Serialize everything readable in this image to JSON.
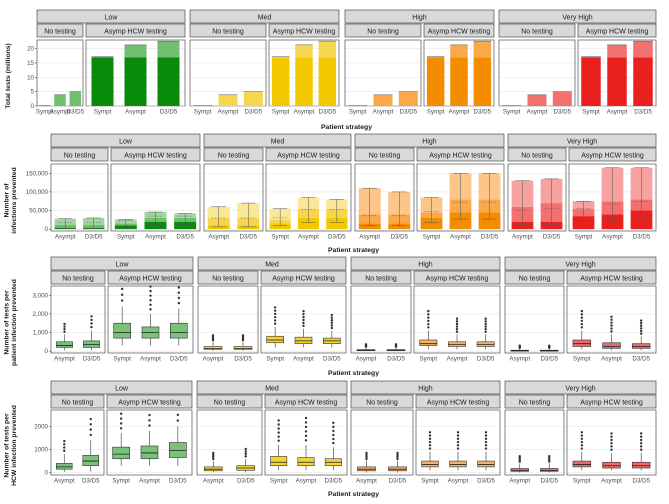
{
  "chart_data": [
    {
      "type": "bar",
      "title": "",
      "ylabel": "Total tests (millions)",
      "xlabel": "Patient strategy",
      "ylim": [
        0,
        23
      ],
      "yticks": [
        0,
        5,
        10,
        15,
        20
      ],
      "ytick_labels": [
        "0",
        "5",
        "10",
        "15",
        "20"
      ],
      "groups": [
        {
          "label": "Low",
          "colors": {
            "light": "#a3d4a3",
            "mid": "#6fbf6f",
            "dark": "#0a8a0a"
          }
        },
        {
          "label": "Med",
          "colors": {
            "light": "#fbe79a",
            "mid": "#f7d64f",
            "dark": "#f2c900"
          }
        },
        {
          "label": "High",
          "colors": {
            "light": "#fcc68b",
            "mid": "#f9a84a",
            "dark": "#f48c00"
          }
        },
        {
          "label": "Very High",
          "colors": {
            "light": "#f7a1a1",
            "mid": "#f2706f",
            "dark": "#e8201e"
          }
        }
      ],
      "subpanels": [
        {
          "label": "No testing",
          "categories": [
            "Sympt",
            "Asympt",
            "D3/D5"
          ],
          "bars": [
            [
              0,
              0.15
            ],
            [
              0,
              3.9
            ],
            [
              0,
              5.0
            ]
          ]
        },
        {
          "label": "Asymp HCW testing",
          "categories": [
            "Sympt",
            "Asympt",
            "D3/D5"
          ],
          "bars": [
            [
              17.0,
              17.2
            ],
            [
              17.0,
              21.3
            ],
            [
              17.0,
              22.6
            ]
          ]
        }
      ]
    },
    {
      "type": "bar",
      "title": "",
      "ylabel": "Number of infections prevented",
      "xlabel": "Patient strategy",
      "ylim": [
        -5000,
        175000
      ],
      "yticks": [
        0,
        50000,
        100000,
        150000
      ],
      "ytick_labels": [
        "0",
        "50,000",
        "100,000",
        "150,000"
      ],
      "groups": [
        {
          "label": "Low"
        },
        {
          "label": "Med"
        },
        {
          "label": "High"
        },
        {
          "label": "Very High"
        }
      ],
      "subpanels": [
        {
          "label": "No testing",
          "categories": [
            "Asympt",
            "D3/D5"
          ]
        },
        {
          "label": "Asymp HCW testing",
          "categories": [
            "Sympt",
            "Asympt",
            "D3/D5"
          ]
        }
      ],
      "values": {
        "Low": [
          [
            [
              4000,
              12000,
              28000
            ],
            [
              4000,
              12000,
              30000
            ]
          ],
          [
            [
              10000,
              15000,
              26000
            ],
            [
              20000,
              30000,
              46000
            ],
            [
              20000,
              30000,
              42000
            ]
          ]
        ],
        "Med": [
          [
            [
              10000,
              30000,
              60000
            ],
            [
              10000,
              30000,
              70000
            ]
          ],
          [
            [
              15000,
              25000,
              55000
            ],
            [
              30000,
              55000,
              85000
            ],
            [
              30000,
              55000,
              80000
            ]
          ]
        ],
        "High": [
          [
            [
              15000,
              40000,
              110000
            ],
            [
              15000,
              40000,
              100000
            ]
          ],
          [
            [
              30000,
              45000,
              85000
            ],
            [
              45000,
              80000,
              150000
            ],
            [
              45000,
              80000,
              150000
            ]
          ]
        ],
        "Very High": [
          [
            [
              20000,
              60000,
              130000
            ],
            [
              20000,
              70000,
              135000
            ]
          ],
          [
            [
              35000,
              55000,
              75000
            ],
            [
              40000,
              75000,
              165000
            ],
            [
              50000,
              80000,
              165000
            ]
          ]
        ]
      },
      "value_format": "[lower, mid, upper] per bar (stacked: dark to lower, mid to mid, light to upper)"
    },
    {
      "type": "box",
      "ylabel": "Number of tests per patient infection prevented",
      "xlabel": "Patient strategy",
      "ylim": [
        -100,
        3500
      ],
      "yticks": [
        0,
        1000,
        2000,
        3000
      ],
      "ytick_labels": [
        "0",
        "1,000",
        "2,000",
        "3,000"
      ],
      "groups": [
        {
          "label": "Low"
        },
        {
          "label": "Med"
        },
        {
          "label": "High"
        },
        {
          "label": "Very High"
        }
      ],
      "subpanels": [
        {
          "label": "No testing",
          "categories": [
            "Asympt",
            "D3/D5"
          ]
        },
        {
          "label": "Asymp HCW testing",
          "categories": [
            "Sympt",
            "Asympt",
            "D3/D5"
          ]
        }
      ],
      "box_format": "[whisker_low, q1, median, q3, whisker_high]",
      "boxes": {
        "Low": [
          [
            [
              50,
              200,
              300,
              500,
              900
            ],
            [
              50,
              200,
              350,
              550,
              1100
            ]
          ],
          [
            [
              300,
              700,
              1000,
              1500,
              2400
            ],
            [
              300,
              700,
              1000,
              1300,
              2000
            ],
            [
              300,
              700,
              1000,
              1500,
              2300
            ]
          ]
        ],
        "Med": [
          [
            [
              30,
              100,
              150,
              250,
              500
            ],
            [
              30,
              100,
              150,
              250,
              500
            ]
          ],
          [
            [
              200,
              450,
              600,
              800,
              1300
            ],
            [
              200,
              400,
              550,
              750,
              1200
            ],
            [
              200,
              400,
              550,
              700,
              1100
            ]
          ]
        ],
        "High": [
          [
            [
              10,
              30,
              50,
              80,
              200
            ],
            [
              10,
              30,
              50,
              80,
              200
            ]
          ],
          [
            [
              100,
              300,
              400,
              600,
              1100
            ],
            [
              100,
              250,
              350,
              500,
              900
            ],
            [
              100,
              250,
              350,
              500,
              900
            ]
          ]
        ],
        "Very High": [
          [
            [
              5,
              20,
              30,
              50,
              150
            ],
            [
              5,
              20,
              30,
              50,
              150
            ]
          ],
          [
            [
              100,
              250,
              400,
              600,
              1100
            ],
            [
              50,
              150,
              250,
              450,
              900
            ],
            [
              50,
              150,
              250,
              400,
              800
            ]
          ]
        ]
      }
    },
    {
      "type": "box",
      "ylabel": "Number of tests per HCW infection prevented",
      "xlabel": "Patient strategy",
      "ylim": [
        -100,
        2700
      ],
      "yticks": [
        0,
        1000,
        2000
      ],
      "ytick_labels": [
        "0",
        "1000",
        "2000"
      ],
      "groups": [
        {
          "label": "Low"
        },
        {
          "label": "Med"
        },
        {
          "label": "High"
        },
        {
          "label": "Very High"
        }
      ],
      "subpanels": [
        {
          "label": "No testing",
          "categories": [
            "Asympt",
            "D3/D5"
          ]
        },
        {
          "label": "Asymp HCW testing",
          "categories": [
            "Sympt",
            "Asympt",
            "D3/D5"
          ]
        }
      ],
      "box_format": "[whisker_low, q1, median, q3, whisker_high]",
      "boxes": {
        "Low": [
          [
            [
              30,
              150,
              250,
              400,
              800
            ],
            [
              50,
              300,
              500,
              750,
              1400
            ]
          ],
          [
            [
              300,
              600,
              800,
              1100,
              1700
            ],
            [
              300,
              600,
              850,
              1150,
              1800
            ],
            [
              300,
              650,
              950,
              1300,
              2000
            ]
          ]
        ],
        "Med": [
          [
            [
              20,
              80,
              150,
              250,
              500
            ],
            [
              20,
              100,
              200,
              300,
              600
            ]
          ],
          [
            [
              100,
              300,
              450,
              700,
              1200
            ],
            [
              100,
              300,
              450,
              650,
              1200
            ],
            [
              100,
              300,
              450,
              600,
              1100
            ]
          ]
        ],
        "High": [
          [
            [
              10,
              80,
              150,
              250,
              500
            ],
            [
              10,
              80,
              150,
              250,
              500
            ]
          ],
          [
            [
              100,
              250,
              350,
              500,
              900
            ],
            [
              100,
              250,
              350,
              500,
              900
            ],
            [
              100,
              250,
              350,
              500,
              900
            ]
          ]
        ],
        "Very High": [
          [
            [
              10,
              60,
              100,
              180,
              400
            ],
            [
              10,
              60,
              100,
              180,
              400
            ]
          ],
          [
            [
              100,
              250,
              350,
              500,
              900
            ],
            [
              100,
              200,
              300,
              450,
              850
            ],
            [
              100,
              200,
              300,
              450,
              850
            ]
          ]
        ]
      }
    }
  ]
}
